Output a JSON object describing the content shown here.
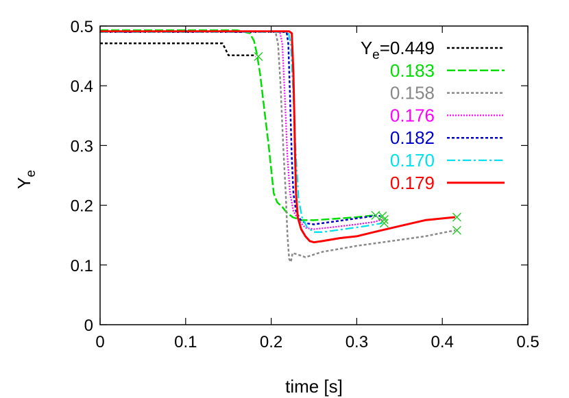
{
  "chart_data": {
    "type": "line",
    "title": "",
    "xlabel": "time [s]",
    "ylabel_main": "Y",
    "ylabel_sub": "e",
    "xlim": [
      0,
      0.5
    ],
    "ylim": [
      0,
      0.5
    ],
    "xticks": [
      0,
      0.1,
      0.2,
      0.3,
      0.4,
      0.5
    ],
    "xtick_labels": [
      "0",
      "0.1",
      "0.2",
      "0.3",
      "0.4",
      "0.5"
    ],
    "yticks": [
      0,
      0.1,
      0.2,
      0.3,
      0.4,
      0.5
    ],
    "ytick_labels": [
      "0",
      "0.1",
      "0.2",
      "0.3",
      "0.4",
      "0.5"
    ],
    "grid": false,
    "legend": "top-right",
    "legend_prefix_main": "Y",
    "legend_prefix_sub": "e",
    "legend_prefix_eq": "=",
    "series": [
      {
        "name": "0.449",
        "color": "#000000",
        "dash": "dotted",
        "points": [
          [
            0.0,
            0.471
          ],
          [
            0.143,
            0.471
          ],
          [
            0.146,
            0.463
          ],
          [
            0.15,
            0.451
          ],
          [
            0.18,
            0.451
          ],
          [
            0.182,
            0.449
          ]
        ],
        "end_marker": [
          0.185,
          0.449
        ]
      },
      {
        "name": "0.183",
        "color": "#00dd00",
        "dash": "dashed",
        "points": [
          [
            0.0,
            0.493
          ],
          [
            0.16,
            0.493
          ],
          [
            0.175,
            0.488
          ],
          [
            0.18,
            0.475
          ],
          [
            0.183,
            0.455
          ],
          [
            0.187,
            0.42
          ],
          [
            0.192,
            0.36
          ],
          [
            0.197,
            0.3
          ],
          [
            0.2,
            0.26
          ],
          [
            0.203,
            0.22
          ],
          [
            0.207,
            0.205
          ],
          [
            0.213,
            0.197
          ],
          [
            0.218,
            0.188
          ],
          [
            0.225,
            0.18
          ],
          [
            0.235,
            0.175
          ],
          [
            0.25,
            0.175
          ],
          [
            0.27,
            0.177
          ],
          [
            0.3,
            0.18
          ],
          [
            0.32,
            0.183
          ]
        ],
        "end_marker": [
          0.322,
          0.183
        ]
      },
      {
        "name": "0.158",
        "color": "#888888",
        "dash": "dotted",
        "points": [
          [
            0.0,
            0.491
          ],
          [
            0.205,
            0.491
          ],
          [
            0.208,
            0.47
          ],
          [
            0.211,
            0.4
          ],
          [
            0.214,
            0.3
          ],
          [
            0.217,
            0.22
          ],
          [
            0.219,
            0.15
          ],
          [
            0.221,
            0.11
          ],
          [
            0.223,
            0.105
          ],
          [
            0.225,
            0.12
          ],
          [
            0.23,
            0.118
          ],
          [
            0.24,
            0.113
          ],
          [
            0.26,
            0.122
          ],
          [
            0.3,
            0.132
          ],
          [
            0.35,
            0.142
          ],
          [
            0.38,
            0.148
          ],
          [
            0.415,
            0.158
          ]
        ],
        "end_marker": [
          0.417,
          0.158
        ]
      },
      {
        "name": "0.176",
        "color": "#ff00ff",
        "dash": "fine",
        "points": [
          [
            0.0,
            0.491
          ],
          [
            0.21,
            0.491
          ],
          [
            0.213,
            0.47
          ],
          [
            0.216,
            0.38
          ],
          [
            0.219,
            0.28
          ],
          [
            0.222,
            0.22
          ],
          [
            0.226,
            0.19
          ],
          [
            0.232,
            0.175
          ],
          [
            0.24,
            0.162
          ],
          [
            0.25,
            0.16
          ],
          [
            0.27,
            0.163
          ],
          [
            0.3,
            0.168
          ],
          [
            0.32,
            0.172
          ],
          [
            0.33,
            0.176
          ]
        ],
        "end_marker": [
          0.332,
          0.176
        ]
      },
      {
        "name": "0.182",
        "color": "#0000cc",
        "dash": "dotted",
        "points": [
          [
            0.0,
            0.49
          ],
          [
            0.218,
            0.49
          ],
          [
            0.22,
            0.47
          ],
          [
            0.222,
            0.38
          ],
          [
            0.224,
            0.28
          ],
          [
            0.226,
            0.22
          ],
          [
            0.229,
            0.19
          ],
          [
            0.234,
            0.176
          ],
          [
            0.24,
            0.17
          ],
          [
            0.25,
            0.168
          ],
          [
            0.27,
            0.172
          ],
          [
            0.3,
            0.178
          ],
          [
            0.32,
            0.182
          ],
          [
            0.328,
            0.182
          ]
        ],
        "end_marker": [
          0.33,
          0.182
        ]
      },
      {
        "name": "0.170",
        "color": "#00e0ee",
        "dash": "dashdot",
        "points": [
          [
            0.0,
            0.49
          ],
          [
            0.22,
            0.49
          ],
          [
            0.223,
            0.47
          ],
          [
            0.226,
            0.38
          ],
          [
            0.229,
            0.28
          ],
          [
            0.232,
            0.21
          ],
          [
            0.236,
            0.18
          ],
          [
            0.242,
            0.163
          ],
          [
            0.25,
            0.155
          ],
          [
            0.26,
            0.155
          ],
          [
            0.28,
            0.159
          ],
          [
            0.31,
            0.165
          ],
          [
            0.33,
            0.17
          ]
        ],
        "end_marker": [
          0.332,
          0.17
        ]
      },
      {
        "name": "0.179",
        "color": "#ff0000",
        "dash": "solid",
        "points": [
          [
            0.0,
            0.491
          ],
          [
            0.221,
            0.491
          ],
          [
            0.224,
            0.488
          ],
          [
            0.226,
            0.42
          ],
          [
            0.227,
            0.35
          ],
          [
            0.228,
            0.28
          ],
          [
            0.229,
            0.22
          ],
          [
            0.231,
            0.18
          ],
          [
            0.235,
            0.16
          ],
          [
            0.24,
            0.148
          ],
          [
            0.245,
            0.14
          ],
          [
            0.25,
            0.138
          ],
          [
            0.26,
            0.14
          ],
          [
            0.28,
            0.145
          ],
          [
            0.3,
            0.148
          ],
          [
            0.32,
            0.155
          ],
          [
            0.35,
            0.165
          ],
          [
            0.38,
            0.175
          ],
          [
            0.415,
            0.18
          ]
        ],
        "end_marker": [
          0.417,
          0.18
        ]
      }
    ]
  }
}
